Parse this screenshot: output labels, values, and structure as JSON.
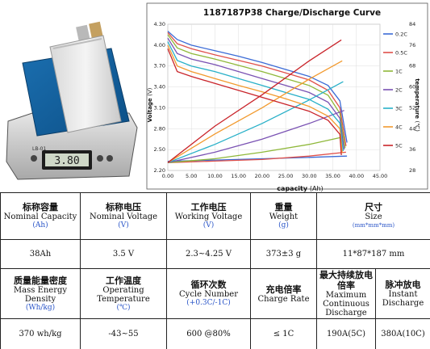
{
  "chart_data": {
    "type": "line",
    "title": "1187187P38 Charge/Discharge Curve",
    "xlabel": "capacity",
    "xunit": "(Ah)",
    "ylabel_left": "Voltage",
    "yunit_left": "(V)",
    "ylabel_right": "temperature",
    "yunit_right": "(℃)",
    "xlim": [
      0,
      45
    ],
    "ylim_left": [
      2.2,
      4.3
    ],
    "ylim_right": [
      28,
      84
    ],
    "x_ticks": [
      "0.00",
      "5.00",
      "10.00",
      "15.00",
      "20.00",
      "25.00",
      "30.00",
      "35.00",
      "40.00",
      "45.00"
    ],
    "y_ticks_left": [
      "2.20",
      "2.50",
      "2.80",
      "3.10",
      "3.40",
      "3.70",
      "4.00",
      "4.30"
    ],
    "y_ticks_left_values": [
      2.2,
      2.5,
      2.8,
      3.1,
      3.4,
      3.7,
      4.0,
      4.3
    ],
    "y_ticks_right": [
      "28",
      "36",
      "44",
      "52",
      "60",
      "68",
      "76",
      "84"
    ],
    "y_ticks_right_values": [
      28,
      36,
      44,
      52,
      60,
      68,
      76,
      84
    ],
    "grid": true,
    "legend_position": "right",
    "series": [
      {
        "name": "0.2C",
        "color": "#3b6bd6",
        "discharge": [
          [
            0,
            4.2
          ],
          [
            2,
            4.08
          ],
          [
            5,
            4.0
          ],
          [
            10,
            3.92
          ],
          [
            15,
            3.84
          ],
          [
            20,
            3.75
          ],
          [
            25,
            3.65
          ],
          [
            30,
            3.55
          ],
          [
            34,
            3.42
          ],
          [
            36.5,
            3.2
          ],
          [
            38,
            2.6
          ]
        ],
        "temperature": [
          [
            0,
            31.5
          ],
          [
            10,
            32
          ],
          [
            20,
            32.5
          ],
          [
            30,
            33
          ],
          [
            38,
            33.5
          ]
        ]
      },
      {
        "name": "0.5C",
        "color": "#e0504a",
        "discharge": [
          [
            0,
            4.18
          ],
          [
            2,
            4.02
          ],
          [
            5,
            3.95
          ],
          [
            10,
            3.86
          ],
          [
            15,
            3.78
          ],
          [
            20,
            3.7
          ],
          [
            25,
            3.6
          ],
          [
            30,
            3.5
          ],
          [
            34,
            3.35
          ],
          [
            36.5,
            3.1
          ],
          [
            37.8,
            2.55
          ]
        ],
        "temperature": [
          [
            0,
            31
          ],
          [
            10,
            31.6
          ],
          [
            20,
            32.2
          ],
          [
            30,
            33.5
          ],
          [
            37.8,
            35
          ]
        ]
      },
      {
        "name": "1C",
        "color": "#8fb83a",
        "discharge": [
          [
            0,
            4.15
          ],
          [
            2,
            3.96
          ],
          [
            5,
            3.88
          ],
          [
            10,
            3.8
          ],
          [
            15,
            3.71
          ],
          [
            20,
            3.62
          ],
          [
            25,
            3.52
          ],
          [
            30,
            3.42
          ],
          [
            34,
            3.28
          ],
          [
            36.5,
            3.02
          ],
          [
            37.6,
            2.52
          ]
        ],
        "temperature": [
          [
            0,
            31
          ],
          [
            10,
            32.5
          ],
          [
            20,
            35
          ],
          [
            30,
            38
          ],
          [
            37.6,
            41
          ]
        ]
      },
      {
        "name": "2C",
        "color": "#7a52b3",
        "discharge": [
          [
            0,
            4.1
          ],
          [
            2,
            3.88
          ],
          [
            5,
            3.8
          ],
          [
            10,
            3.72
          ],
          [
            15,
            3.62
          ],
          [
            20,
            3.52
          ],
          [
            25,
            3.42
          ],
          [
            30,
            3.32
          ],
          [
            34,
            3.18
          ],
          [
            36.5,
            2.95
          ],
          [
            37.4,
            2.5
          ]
        ],
        "temperature": [
          [
            0,
            31
          ],
          [
            10,
            35
          ],
          [
            20,
            40
          ],
          [
            30,
            46
          ],
          [
            37.4,
            51
          ]
        ]
      },
      {
        "name": "3C",
        "color": "#28b0c8",
        "discharge": [
          [
            0,
            4.05
          ],
          [
            2,
            3.78
          ],
          [
            5,
            3.7
          ],
          [
            10,
            3.62
          ],
          [
            15,
            3.52
          ],
          [
            20,
            3.42
          ],
          [
            25,
            3.32
          ],
          [
            30,
            3.22
          ],
          [
            34,
            3.08
          ],
          [
            36.5,
            2.88
          ],
          [
            37.2,
            2.48
          ]
        ],
        "temperature": [
          [
            0,
            31
          ],
          [
            10,
            38
          ],
          [
            20,
            46
          ],
          [
            30,
            55
          ],
          [
            37.2,
            62
          ]
        ]
      },
      {
        "name": "4C",
        "color": "#f29a2e",
        "discharge": [
          [
            0,
            4.0
          ],
          [
            2,
            3.7
          ],
          [
            5,
            3.62
          ],
          [
            10,
            3.52
          ],
          [
            15,
            3.42
          ],
          [
            20,
            3.33
          ],
          [
            25,
            3.23
          ],
          [
            30,
            3.12
          ],
          [
            34,
            2.98
          ],
          [
            36.5,
            2.8
          ],
          [
            37,
            2.45
          ]
        ],
        "temperature": [
          [
            0,
            31
          ],
          [
            10,
            42
          ],
          [
            20,
            52
          ],
          [
            30,
            63
          ],
          [
            37,
            70
          ]
        ]
      },
      {
        "name": "5C",
        "color": "#c9242a",
        "discharge": [
          [
            0,
            3.95
          ],
          [
            2,
            3.62
          ],
          [
            5,
            3.55
          ],
          [
            10,
            3.45
          ],
          [
            15,
            3.35
          ],
          [
            20,
            3.25
          ],
          [
            25,
            3.15
          ],
          [
            30,
            3.05
          ],
          [
            34,
            2.92
          ],
          [
            36.5,
            2.72
          ],
          [
            36.8,
            2.42
          ]
        ],
        "temperature": [
          [
            0,
            31
          ],
          [
            10,
            45
          ],
          [
            20,
            57
          ],
          [
            30,
            70
          ],
          [
            36.8,
            78
          ]
        ]
      }
    ]
  },
  "photo": {
    "display_text": "3.80",
    "scale_label": "LB-01"
  },
  "table": {
    "header1": [
      {
        "zh": "标称容量",
        "en": "Nominal Capacity",
        "unit": "(Ah)"
      },
      {
        "zh": "标称电压",
        "en": "Nominal Voltage",
        "unit": "(V)"
      },
      {
        "zh": "工作电压",
        "en": "Working Voltage",
        "unit": "(V)"
      },
      {
        "zh": "重量",
        "en": "Weight",
        "unit": "(g)"
      },
      {
        "zh": "尺寸",
        "en": "Size",
        "unit": "(mm*mm*mm)"
      }
    ],
    "values1": [
      "38Ah",
      "3.5 V",
      "2.3~4.25 V",
      "373±3 g",
      "11*87*187 mm"
    ],
    "header2": [
      {
        "zh": "质量能量密度",
        "en": "Mass Energy Density",
        "unit": "(Wh/kg)"
      },
      {
        "zh": "工作温度",
        "en": "Operating Temperature",
        "unit": "(℃)"
      },
      {
        "zh": "循环次数",
        "en": "Cycle Number",
        "unit": "(+0.3C/-1C)"
      },
      {
        "zh": "充电倍率",
        "en": "Charge Rate",
        "unit": ""
      },
      {
        "zh": "最大持续放电倍率",
        "en": "Maximum Continuous Discharge",
        "unit": ""
      },
      {
        "zh": "脉冲放电",
        "en": "Instant Discharge",
        "unit": ""
      }
    ],
    "values2": [
      "370 wh/kg",
      "-43~55",
      "600 @80%",
      "≤ 1C",
      "190A(5C)",
      "380A(10C)"
    ]
  }
}
